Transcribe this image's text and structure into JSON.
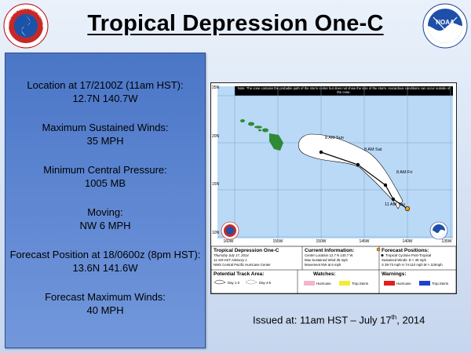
{
  "header": {
    "title": "Tropical Depression One-C",
    "nws_logo_text": "NATIONAL WEATHER SERVICE",
    "noaa_logo_text": "NOAA"
  },
  "info": {
    "location_label": "Location at 17/2100Z (11am HST):",
    "location_value": "12.7N 140.7W",
    "winds_label": "Maximum Sustained Winds:",
    "winds_value": "35 MPH",
    "pressure_label": "Minimum Central Pressure:",
    "pressure_value": "1005 MB",
    "moving_label": "Moving:",
    "moving_value": "NW 6 MPH",
    "forecast_label": "Forecast Position at 18/0600z (8pm HST):",
    "forecast_value": "13.6N 141.6W",
    "fmax_label": "Forecast Maximum Winds:",
    "fmax_value": "40 MPH"
  },
  "map": {
    "note": "Note: The cone contains the probable path of the storm center but does not show the size of the storm. Hazardous conditions can occur outside of the cone.",
    "lat_labels": [
      "25N",
      "20N",
      "15N",
      "10N"
    ],
    "lon_labels": [
      "160W",
      "155W",
      "150W",
      "145W",
      "140W",
      "135W"
    ],
    "track_points": [
      {
        "label": "11 AM Thu"
      },
      {
        "label": "8 AM Fri"
      },
      {
        "label": "8 AM Sat"
      },
      {
        "label": "8 AM Sun"
      }
    ],
    "legend": {
      "storm_name": "Tropical Depression One-C",
      "date_line": "Thursday July 17, 2014",
      "advisory": "11 AM HST Advisory 1",
      "center": "NWS Central Pacific Hurricane Center",
      "current_info_title": "Current Information:",
      "current_center": "Center Location 12.7 N 140.7 W",
      "current_winds": "Max Sustained Wind 35 mph",
      "current_movement": "Movement NW at 6 mph",
      "forecast_title": "Forecast Positions:",
      "forecast_types": "Tropical Cyclone   Post-Tropical",
      "forecast_winds": "Sustained Winds:   D < 39 mph",
      "forecast_scale": "S 39-73 mph  H 74-110 mph  M > 110mph",
      "track_area_title": "Potential Track Area:",
      "track_day13": "Day 1-3",
      "track_day45": "Day 4-5",
      "watches_title": "Watches:",
      "watch_hurricane": "Hurricane",
      "watch_ts": "Trop.Storm",
      "warnings_title": "Warnings:",
      "warn_hurricane": "Hurricane",
      "warn_ts": "Trop.Storm"
    }
  },
  "issued": {
    "prefix": "Issued at: 11am HST – July 17",
    "suffix": "th",
    "year": ", 2014"
  },
  "colors": {
    "panel": "#5f87d2",
    "ocean": "#b9d9f6",
    "land": "#2e8a34",
    "track": "#000000"
  }
}
